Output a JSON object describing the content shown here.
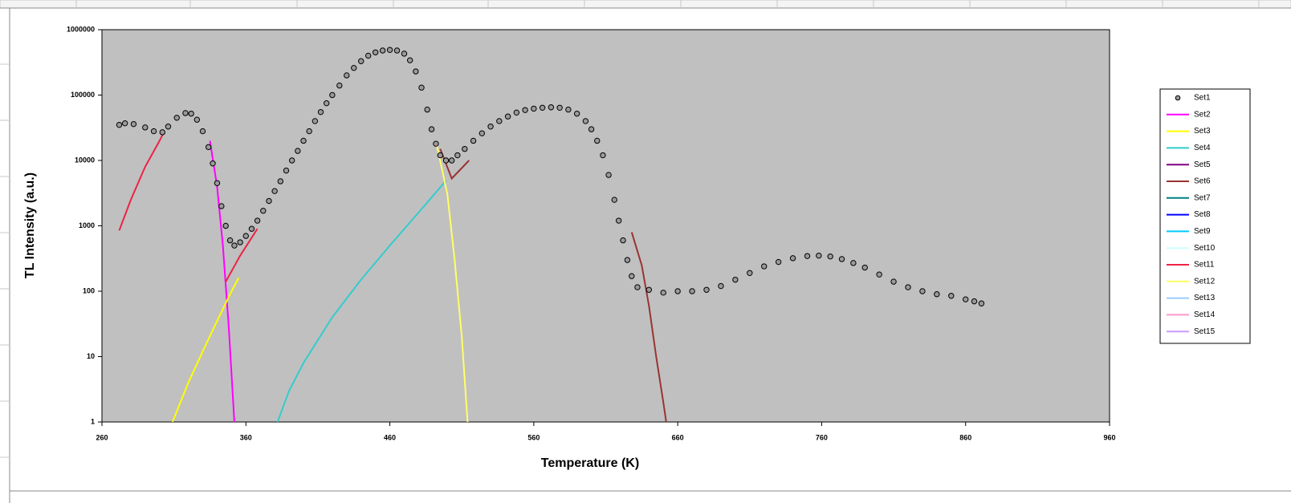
{
  "chart_data": {
    "type": "scatter",
    "ylabel": "TL Intensity (a.u.)",
    "xlabel": "Temperature (K)",
    "xlim": [
      260,
      960
    ],
    "xticks": [
      260,
      360,
      460,
      560,
      660,
      760,
      860,
      960
    ],
    "ylim": [
      1,
      1000000
    ],
    "yticks": [
      1,
      10,
      100,
      1000,
      10000,
      100000,
      1000000
    ],
    "log_y": true,
    "legend": "right",
    "plot_color": "#c0c0c0",
    "series": [
      {
        "name": "Set1",
        "color": "#000000",
        "style": "markers",
        "x": [
          272,
          276,
          282,
          290,
          296,
          302,
          306,
          312,
          318,
          322,
          326,
          330,
          334,
          337,
          340,
          343,
          346,
          349,
          352,
          356,
          360,
          364,
          368,
          372,
          376,
          380,
          384,
          388,
          392,
          396,
          400,
          404,
          408,
          412,
          416,
          420,
          425,
          430,
          435,
          440,
          445,
          450,
          455,
          460,
          465,
          470,
          474,
          478,
          482,
          486,
          489,
          492,
          495,
          499,
          503,
          507,
          512,
          518,
          524,
          530,
          536,
          542,
          548,
          554,
          560,
          566,
          572,
          578,
          584,
          590,
          596,
          600,
          604,
          608,
          612,
          616,
          619,
          622,
          625,
          628,
          632,
          640,
          650,
          660,
          670,
          680,
          690,
          700,
          710,
          720,
          730,
          740,
          750,
          758,
          766,
          774,
          782,
          790,
          800,
          810,
          820,
          830,
          840,
          850,
          860,
          866,
          871
        ],
        "values": [
          35000,
          37000,
          36000,
          32000,
          28000,
          27000,
          33000,
          45000,
          53000,
          52000,
          42000,
          28000,
          16000,
          9000,
          4500,
          2000,
          1000,
          600,
          500,
          560,
          700,
          900,
          1200,
          1700,
          2400,
          3400,
          4800,
          7000,
          10000,
          14000,
          20000,
          28000,
          40000,
          55000,
          75000,
          100000,
          140000,
          200000,
          260000,
          330000,
          400000,
          450000,
          480000,
          490000,
          480000,
          430000,
          340000,
          230000,
          130000,
          60000,
          30000,
          18000,
          12000,
          10000,
          10000,
          12000,
          15000,
          20000,
          26000,
          33000,
          40000,
          47000,
          54000,
          59000,
          62000,
          64000,
          65000,
          64000,
          60000,
          52000,
          40000,
          30000,
          20000,
          12000,
          6000,
          2500,
          1200,
          600,
          300,
          170,
          115,
          105,
          95,
          100,
          100,
          105,
          120,
          150,
          190,
          240,
          280,
          320,
          345,
          350,
          340,
          310,
          270,
          230,
          180,
          140,
          115,
          100,
          90,
          85,
          75,
          70,
          65
        ]
      },
      {
        "name": "Set2",
        "color": "#ff00ff",
        "style": "line",
        "x": [
          335,
          340,
          344,
          348,
          352
        ],
        "values": [
          20000,
          4000,
          500,
          30,
          1
        ]
      },
      {
        "name": "Set3",
        "color": "#ffff00",
        "style": "line",
        "x": [
          309,
          320,
          330,
          340,
          350,
          355
        ],
        "values": [
          1,
          4,
          12,
          35,
          100,
          160
        ]
      },
      {
        "name": "Set4",
        "color": "#33cccc",
        "style": "line",
        "x": [
          382,
          390,
          400,
          420,
          440,
          460,
          480,
          499
        ],
        "values": [
          1,
          3,
          8,
          40,
          150,
          500,
          1600,
          4900
        ]
      },
      {
        "name": "Set5",
        "color": "#800080",
        "style": "line",
        "x": [],
        "values": []
      },
      {
        "name": "Set6",
        "color": "#993333",
        "style": "line",
        "x": [
          495,
          503,
          515,
          560,
          628,
          635,
          640,
          645,
          650,
          652
        ],
        "values": [
          15000,
          5300,
          10000,
          null,
          800,
          250,
          60,
          10,
          2,
          1
        ]
      },
      {
        "name": "Set7",
        "color": "#008080",
        "style": "line",
        "x": [],
        "values": []
      },
      {
        "name": "Set8",
        "color": "#0000ff",
        "style": "line",
        "x": [],
        "values": []
      },
      {
        "name": "Set9",
        "color": "#00ccff",
        "style": "line",
        "x": [],
        "values": []
      },
      {
        "name": "Set10",
        "color": "#ccffff",
        "style": "line",
        "x": [],
        "values": []
      },
      {
        "name": "Set11",
        "color": "#ee2244",
        "style": "line",
        "x": [
          272,
          280,
          290,
          300,
          303,
          320,
          346,
          356,
          368
        ],
        "values": [
          850,
          2500,
          8000,
          20000,
          27000,
          null,
          140,
          350,
          900
        ]
      },
      {
        "name": "Set12",
        "color": "#ffff66",
        "style": "line",
        "x": [
          492,
          500,
          505,
          510,
          514
        ],
        "values": [
          20000,
          3000,
          300,
          20,
          1
        ]
      },
      {
        "name": "Set13",
        "color": "#99ccff",
        "style": "line",
        "x": [],
        "values": []
      },
      {
        "name": "Set14",
        "color": "#ff99cc",
        "style": "line",
        "x": [],
        "values": []
      },
      {
        "name": "Set15",
        "color": "#cc99ff",
        "style": "line",
        "x": [],
        "values": []
      }
    ]
  }
}
